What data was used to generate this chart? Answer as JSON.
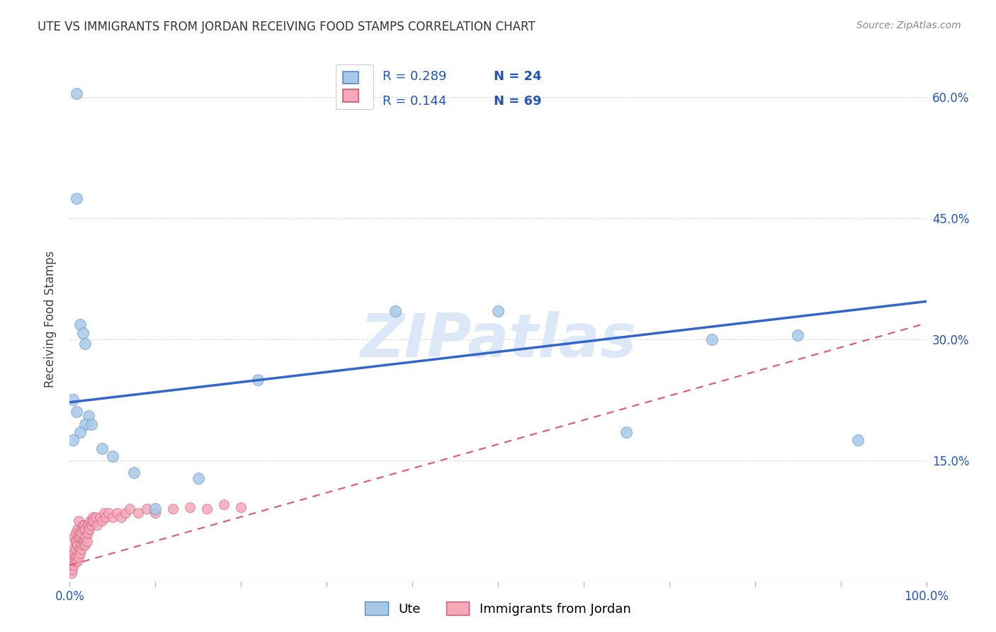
{
  "title": "UTE VS IMMIGRANTS FROM JORDAN RECEIVING FOOD STAMPS CORRELATION CHART",
  "source": "Source: ZipAtlas.com",
  "ylabel": "Receiving Food Stamps",
  "xlim": [
    0.0,
    1.0
  ],
  "ylim": [
    0.0,
    0.65
  ],
  "ute_color": "#a8c8e8",
  "jordan_color": "#f4a8b8",
  "ute_edge_color": "#5588cc",
  "jordan_edge_color": "#cc5577",
  "ute_line_color": "#3366cc",
  "jordan_line_color": "#dd5577",
  "background_color": "#ffffff",
  "grid_color": "#cccccc",
  "watermark": "ZIPatlas",
  "watermark_color": "#dce8f8",
  "legend_r1": "R = 0.289",
  "legend_n1": "N = 24",
  "legend_r2": "R = 0.144",
  "legend_n2": "N = 69",
  "legend_label1": "Ute",
  "legend_label2": "Immigrants from Jordan",
  "ute_x": [
    0.008,
    0.008,
    0.012,
    0.015,
    0.018,
    0.004,
    0.008,
    0.022,
    0.018,
    0.025,
    0.012,
    0.004,
    0.038,
    0.05,
    0.075,
    0.5,
    0.75,
    0.85,
    0.92,
    0.65,
    0.38,
    0.22,
    0.15,
    0.1
  ],
  "ute_y": [
    0.605,
    0.475,
    0.318,
    0.308,
    0.295,
    0.225,
    0.21,
    0.205,
    0.195,
    0.195,
    0.185,
    0.175,
    0.165,
    0.155,
    0.135,
    0.335,
    0.3,
    0.305,
    0.175,
    0.185,
    0.335,
    0.25,
    0.128,
    0.09
  ],
  "jordan_x": [
    0.002,
    0.002,
    0.003,
    0.003,
    0.004,
    0.004,
    0.005,
    0.005,
    0.005,
    0.006,
    0.006,
    0.007,
    0.007,
    0.007,
    0.008,
    0.008,
    0.009,
    0.009,
    0.009,
    0.01,
    0.01,
    0.01,
    0.011,
    0.011,
    0.012,
    0.012,
    0.013,
    0.013,
    0.014,
    0.014,
    0.015,
    0.015,
    0.016,
    0.016,
    0.017,
    0.017,
    0.018,
    0.018,
    0.019,
    0.02,
    0.02,
    0.021,
    0.022,
    0.023,
    0.024,
    0.025,
    0.026,
    0.027,
    0.028,
    0.03,
    0.032,
    0.035,
    0.038,
    0.04,
    0.042,
    0.045,
    0.05,
    0.055,
    0.06,
    0.065,
    0.07,
    0.08,
    0.09,
    0.1,
    0.12,
    0.14,
    0.16,
    0.18,
    0.2
  ],
  "jordan_y": [
    0.01,
    0.02,
    0.015,
    0.03,
    0.025,
    0.04,
    0.02,
    0.035,
    0.055,
    0.03,
    0.05,
    0.025,
    0.04,
    0.06,
    0.03,
    0.05,
    0.025,
    0.045,
    0.065,
    0.03,
    0.055,
    0.075,
    0.04,
    0.06,
    0.035,
    0.055,
    0.045,
    0.065,
    0.04,
    0.06,
    0.05,
    0.07,
    0.045,
    0.065,
    0.05,
    0.07,
    0.045,
    0.065,
    0.055,
    0.05,
    0.07,
    0.06,
    0.07,
    0.065,
    0.075,
    0.07,
    0.075,
    0.08,
    0.075,
    0.08,
    0.07,
    0.08,
    0.075,
    0.085,
    0.08,
    0.085,
    0.08,
    0.085,
    0.08,
    0.085,
    0.09,
    0.085,
    0.09,
    0.085,
    0.09,
    0.092,
    0.09,
    0.095,
    0.092
  ]
}
